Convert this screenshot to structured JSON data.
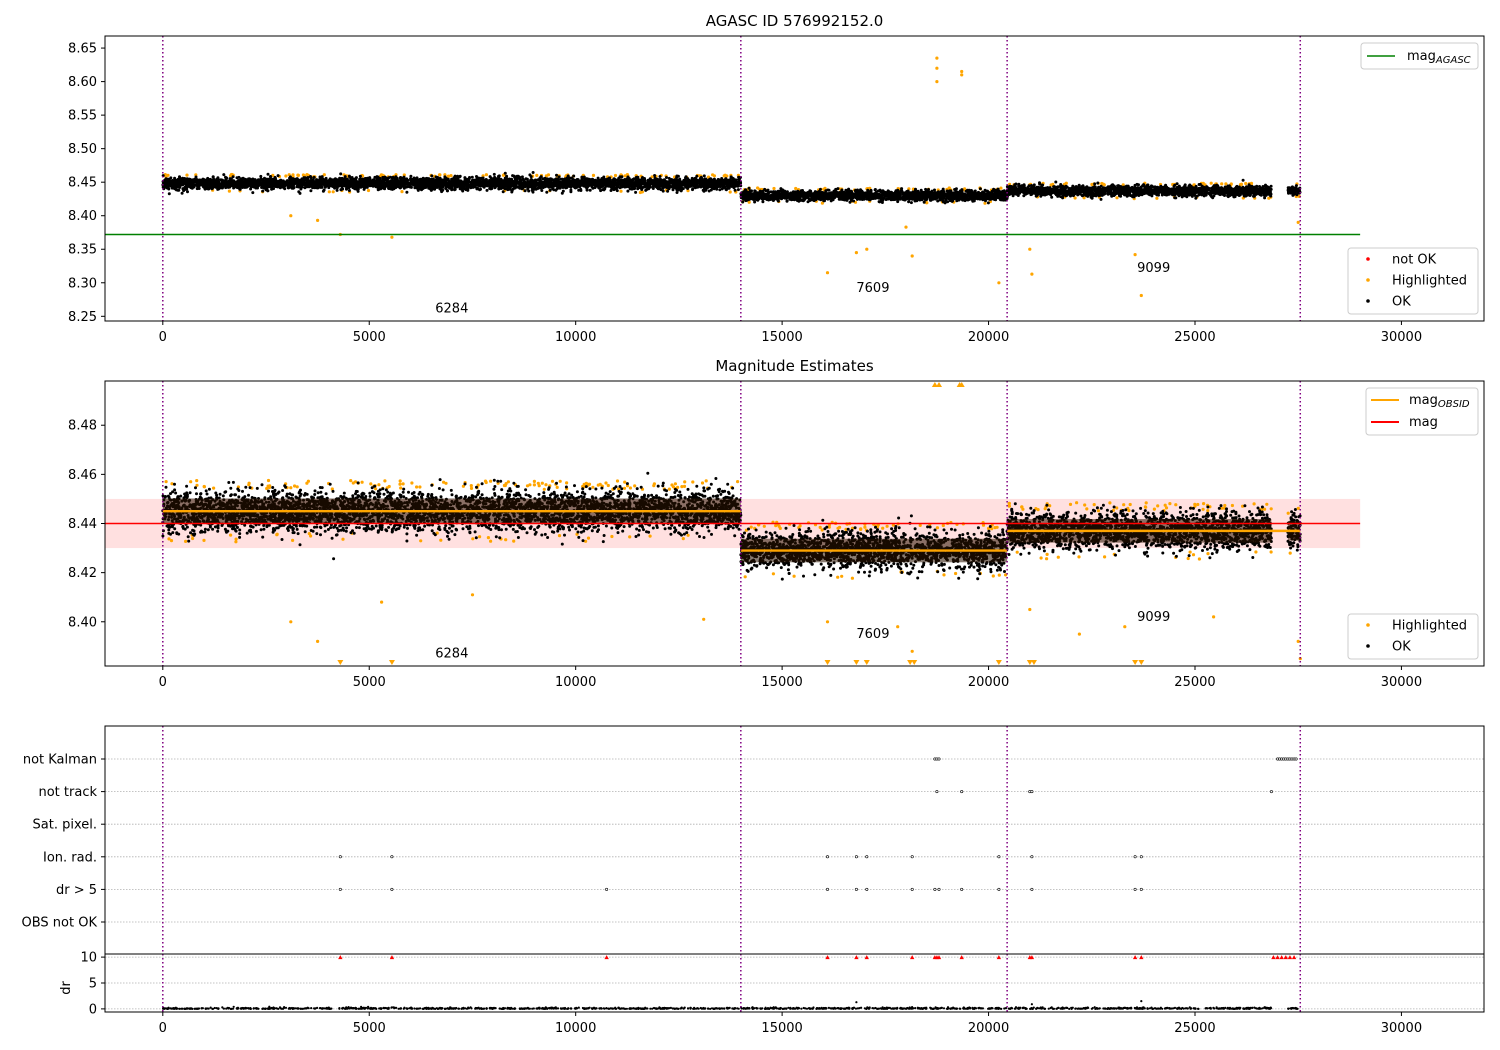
{
  "chart_data": [
    {
      "type": "scatter",
      "title": "AGASC ID 576992152.0",
      "xlim": [
        -1400,
        32000
      ],
      "ylim": [
        8.243,
        8.668
      ],
      "xticks": [
        0,
        5000,
        10000,
        15000,
        20000,
        25000,
        30000
      ],
      "yticks": [
        8.25,
        8.3,
        8.35,
        8.4,
        8.45,
        8.5,
        8.55,
        8.6,
        8.65
      ],
      "grid": false,
      "obsid_boundaries": [
        0,
        14000,
        20450,
        27550
      ],
      "obsid_labels": [
        {
          "text": "6284",
          "x": 7000,
          "y": 8.262
        },
        {
          "text": "7609",
          "x": 17200,
          "y": 8.292
        },
        {
          "text": "9099",
          "x": 24000,
          "y": 8.322
        }
      ],
      "reference_lines": [
        {
          "name": "mag_AGASC",
          "y": 8.372,
          "x": [
            -1400,
            29000
          ],
          "color": "#008000"
        }
      ],
      "segments": [
        {
          "x": [
            0,
            14000
          ],
          "center": 8.448,
          "spread": 0.007
        },
        {
          "x": [
            14000,
            20450
          ],
          "center": 8.43,
          "spread": 0.006
        },
        {
          "x": [
            20450,
            26850
          ],
          "center": 8.437,
          "spread": 0.006
        },
        {
          "x": [
            27250,
            27550
          ],
          "center": 8.438,
          "spread": 0.005
        }
      ],
      "highlighted_outliers": [
        [
          5550,
          8.368
        ],
        [
          4300,
          8.372
        ],
        [
          3100,
          8.4
        ],
        [
          3750,
          8.393
        ],
        [
          16100,
          8.315
        ],
        [
          16800,
          8.345
        ],
        [
          17050,
          8.35
        ],
        [
          18150,
          8.34
        ],
        [
          18000,
          8.383
        ],
        [
          20250,
          8.3
        ],
        [
          21050,
          8.313
        ],
        [
          21000,
          8.35
        ],
        [
          23550,
          8.342
        ],
        [
          23700,
          8.281
        ],
        [
          27500,
          8.39
        ],
        [
          18750,
          8.6
        ],
        [
          18750,
          8.62
        ],
        [
          18750,
          8.635
        ],
        [
          19350,
          8.61
        ],
        [
          19350,
          8.615
        ]
      ],
      "series": [
        {
          "name": "not OK",
          "color": "#ff0000"
        },
        {
          "name": "Highlighted",
          "color": "#ffa500"
        },
        {
          "name": "OK",
          "color": "#000000"
        }
      ],
      "legend_top": {
        "text": "mag",
        "sub": "AGASC",
        "placement": "top-right"
      },
      "legend_bottom": {
        "placement": "bottom-right"
      }
    },
    {
      "type": "scatter",
      "title": "Magnitude Estimates",
      "xlim": [
        -1400,
        32000
      ],
      "ylim": [
        8.382,
        8.498
      ],
      "xticks": [
        0,
        5000,
        10000,
        15000,
        20000,
        25000,
        30000
      ],
      "yticks": [
        8.4,
        8.42,
        8.44,
        8.46,
        8.48
      ],
      "grid": false,
      "obsid_boundaries": [
        0,
        14000,
        20450,
        27550
      ],
      "obsid_labels": [
        {
          "text": "6284",
          "x": 7000,
          "y": 8.387
        },
        {
          "text": "7609",
          "x": 17200,
          "y": 8.395
        },
        {
          "text": "9099",
          "x": 24000,
          "y": 8.402
        }
      ],
      "mean_mag": 8.44,
      "mean_band": [
        8.43,
        8.45
      ],
      "mean_line_x": [
        -1400,
        29000
      ],
      "obsid_means": [
        {
          "x": [
            0,
            14000
          ],
          "y": 8.445
        },
        {
          "x": [
            14000,
            20450
          ],
          "y": 8.429
        },
        {
          "x": [
            20450,
            27550
          ],
          "y": 8.437
        }
      ],
      "segments": [
        {
          "x": [
            0,
            14000
          ],
          "center": 8.445,
          "spread": 0.0065
        },
        {
          "x": [
            14000,
            20450
          ],
          "center": 8.429,
          "spread": 0.006
        },
        {
          "x": [
            20450,
            26850
          ],
          "center": 8.437,
          "spread": 0.006
        },
        {
          "x": [
            27250,
            27550
          ],
          "center": 8.437,
          "spread": 0.005
        }
      ],
      "highlighted_outliers": [
        [
          3100,
          8.4
        ],
        [
          3750,
          8.392
        ],
        [
          5300,
          8.408
        ],
        [
          7500,
          8.411
        ],
        [
          13100,
          8.401
        ],
        [
          16100,
          8.4
        ],
        [
          17800,
          8.398
        ],
        [
          18150,
          8.388
        ],
        [
          21000,
          8.405
        ],
        [
          22200,
          8.395
        ],
        [
          23300,
          8.398
        ],
        [
          25450,
          8.402
        ],
        [
          27500,
          8.392
        ],
        [
          27550,
          8.385
        ]
      ],
      "clipped_low": [
        4300,
        5550,
        16100,
        16800,
        17050,
        18100,
        18200,
        20250,
        21000,
        21100,
        23550,
        23700
      ],
      "clipped_high": [
        18700,
        18800,
        19300,
        19350
      ],
      "series": [
        {
          "name": "Highlighted",
          "color": "#ffa500"
        },
        {
          "name": "OK",
          "color": "#000000"
        }
      ],
      "legend_top": [
        {
          "text": "mag",
          "sub": "OBSID",
          "color": "#ffa500"
        },
        {
          "text": "mag",
          "sub": "",
          "color": "#ff0000"
        }
      ],
      "legend_bottom": {
        "placement": "bottom-right"
      }
    },
    {
      "type": "scatter",
      "title": "",
      "xlim": [
        -1400,
        32000
      ],
      "xticks": [
        0,
        5000,
        10000,
        15000,
        20000,
        25000,
        30000
      ],
      "obsid_boundaries": [
        0,
        14000,
        20450,
        27550
      ],
      "flag_rows": [
        "not Kalman",
        "not track",
        "Sat. pixel.",
        "Ion. rad.",
        "dr > 5",
        "OBS not OK"
      ],
      "flags": {
        "not Kalman": [
          18700,
          18750,
          18800,
          27000,
          27050,
          27100,
          27150,
          27200,
          27250,
          27300,
          27350,
          27400,
          27450
        ],
        "not track": [
          18750,
          19350,
          21000,
          21050,
          26850
        ],
        "Sat. pixel.": [],
        "Ion. rad.": [
          4300,
          5550,
          16100,
          16800,
          17050,
          18150,
          20250,
          21050,
          23550,
          23700
        ],
        "dr > 5": [
          4300,
          5550,
          10750,
          16100,
          16800,
          17050,
          18150,
          18700,
          18800,
          19350,
          20250,
          21050,
          23550,
          23700
        ],
        "OBS not OK": []
      },
      "dr": {
        "ylabel": "dr",
        "ylim": [
          -0.6,
          10.6
        ],
        "yticks": [
          0,
          5,
          10
        ],
        "clipped_at_10": [
          4300,
          5550,
          10750,
          16100,
          16800,
          17050,
          18150,
          18700,
          18750,
          18800,
          19350,
          20250,
          21000,
          21050,
          23550,
          23700,
          26900,
          27000,
          27100,
          27200,
          27300,
          27400
        ],
        "spikes": [
          [
            16800,
            1.3
          ],
          [
            23700,
            1.5
          ],
          [
            21050,
            0.9
          ]
        ]
      }
    }
  ]
}
